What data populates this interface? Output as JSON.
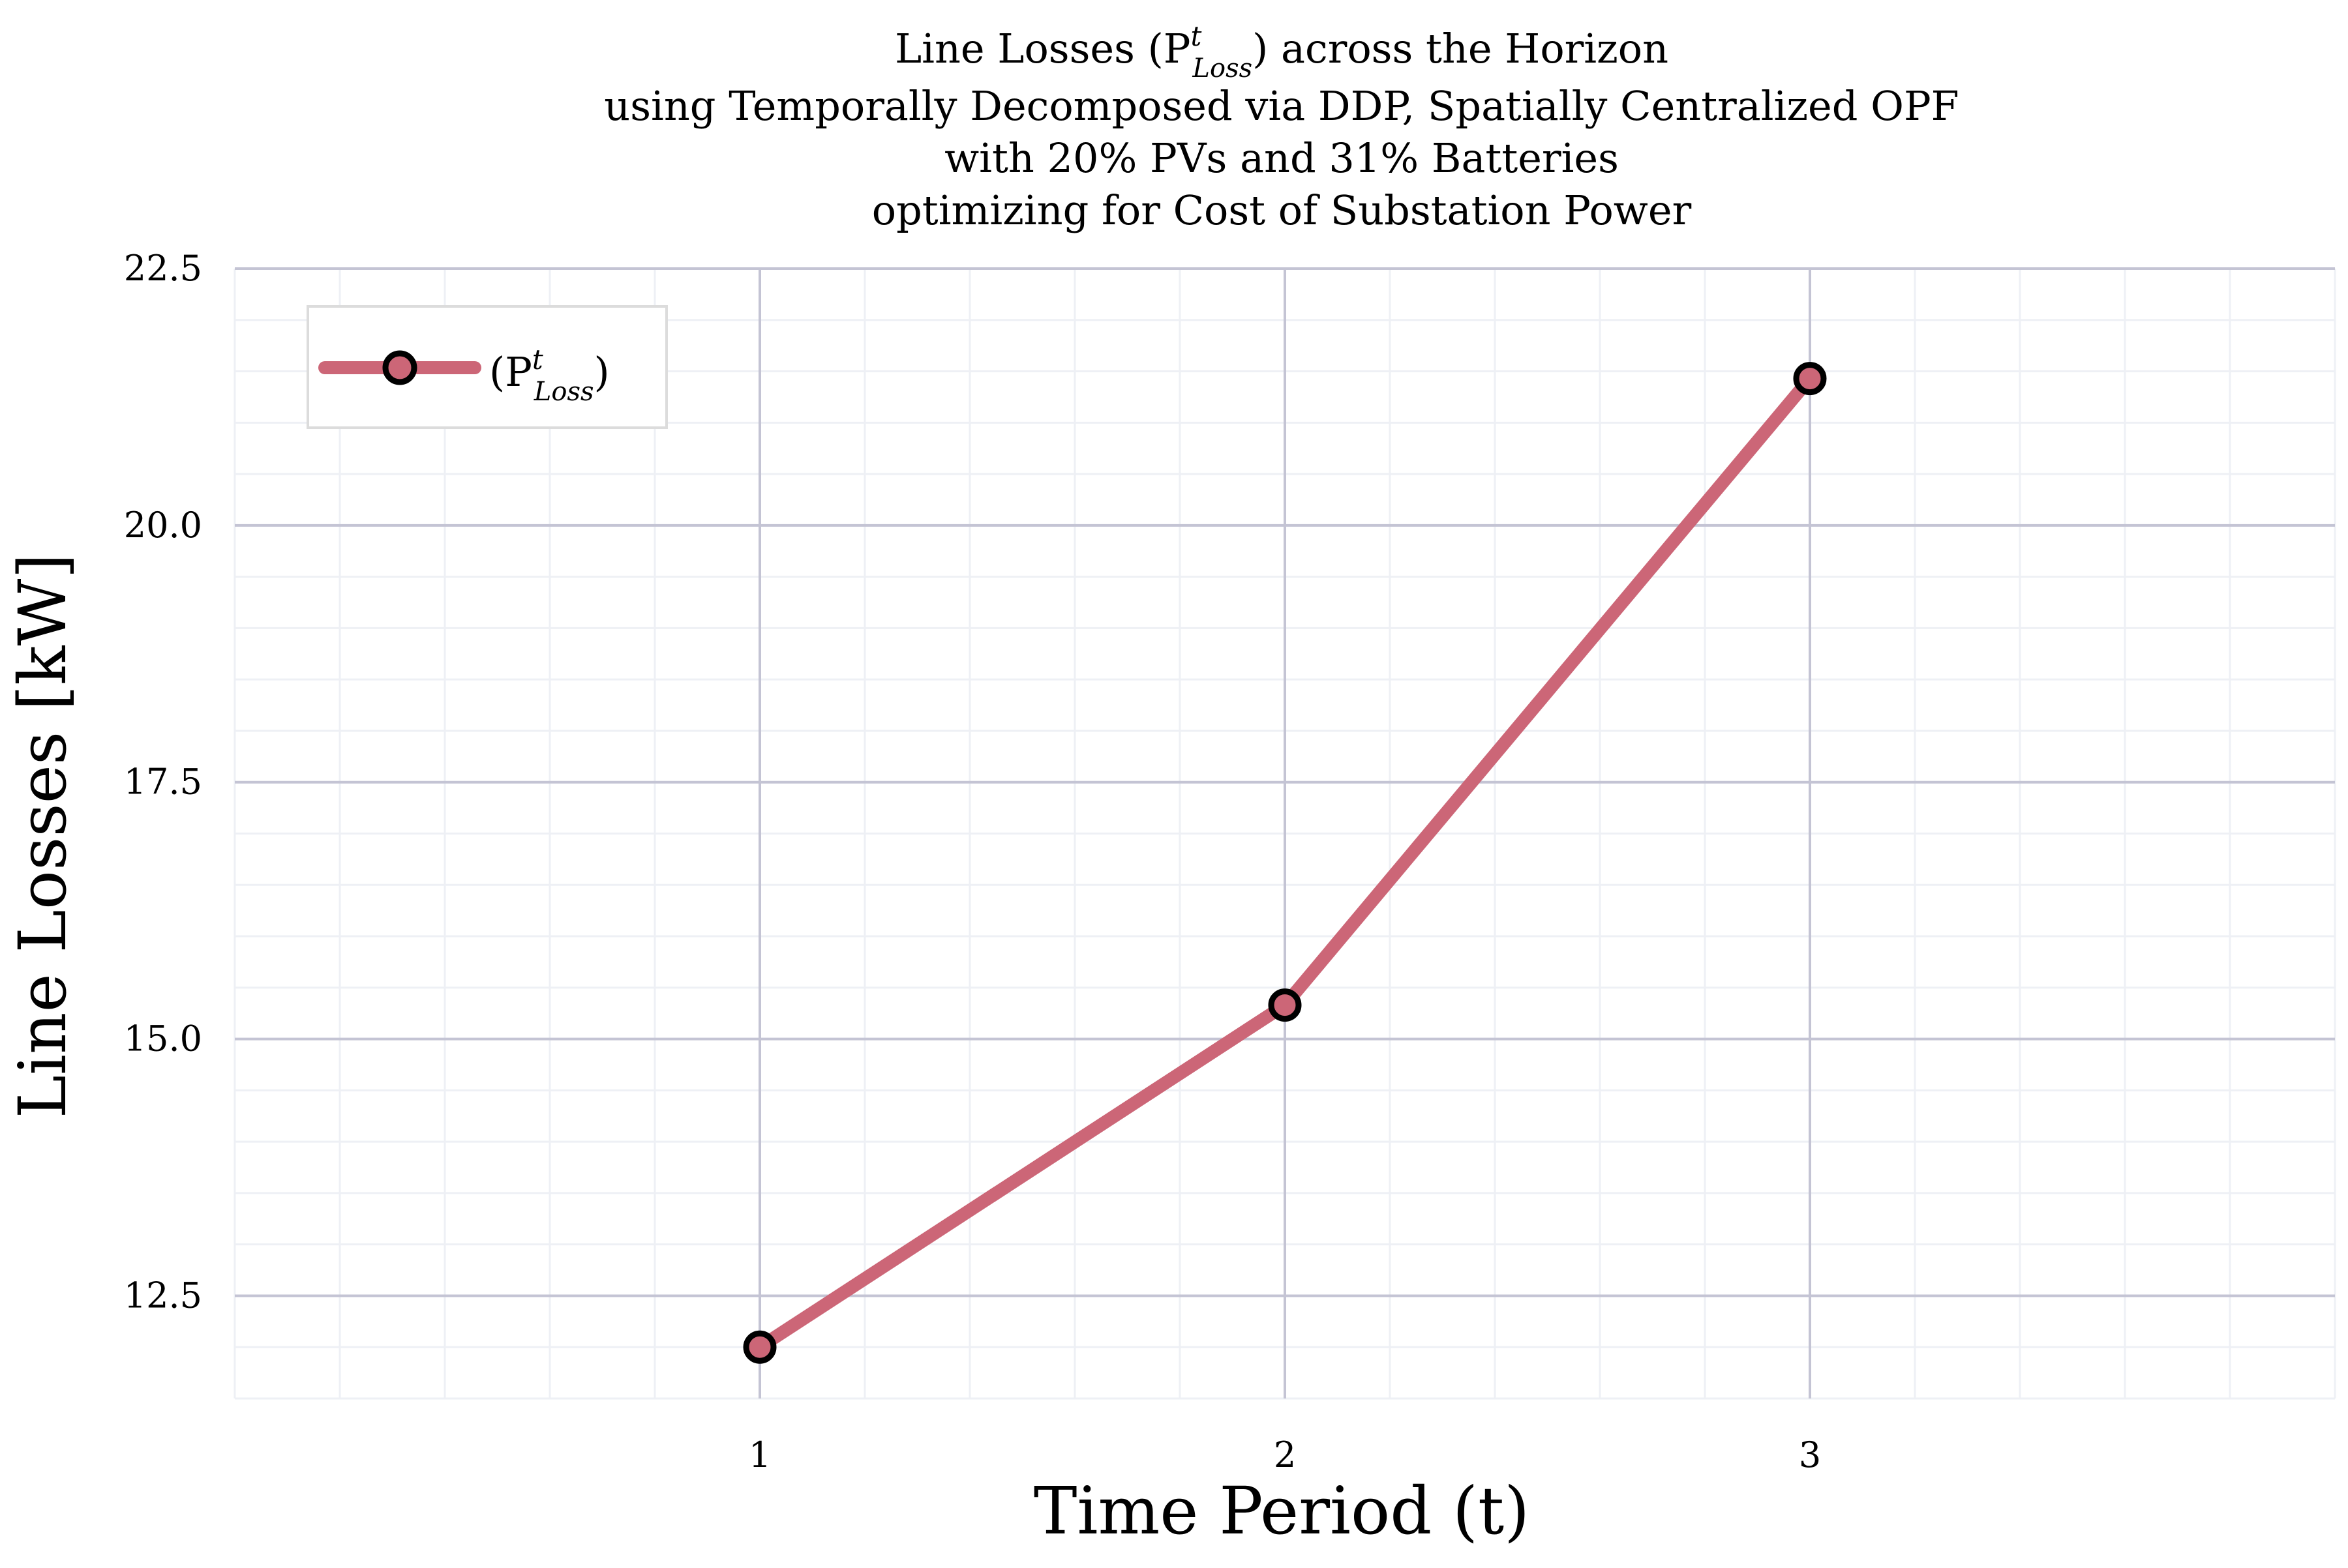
{
  "chart_data": {
    "type": "line",
    "title_lines": [
      "Line Losses (P",
      "using Temporally Decomposed via DDP, Spatially Centralized OPF",
      "with 20% PVs and 31% Batteries",
      "optimizing for Cost of Substation Power"
    ],
    "title_symbol": {
      "sup": "t",
      "sub": "Loss",
      "after": ") across the Horizon"
    },
    "xlabel": "Time Period (t)",
    "ylabel": "Line Losses [kW]",
    "x": [
      1,
      2,
      3
    ],
    "x_ticks": [
      "1",
      "2",
      "3"
    ],
    "xlim": [
      0,
      4
    ],
    "y_ticks": [
      "12.5",
      "15.0",
      "17.5",
      "20.0",
      "22.5"
    ],
    "y_tick_values": [
      12.5,
      15.0,
      17.5,
      20.0,
      22.5
    ],
    "ylim": [
      11.5,
      22.5
    ],
    "grid": true,
    "legend_position": "top-left",
    "series": [
      {
        "name": "(P",
        "name_sup": "t",
        "name_sub": "Loss",
        "name_after": ")",
        "color": "#cc6677",
        "marker_edge_color": "#000000",
        "values": [
          12.0,
          15.33,
          21.43
        ]
      }
    ]
  }
}
